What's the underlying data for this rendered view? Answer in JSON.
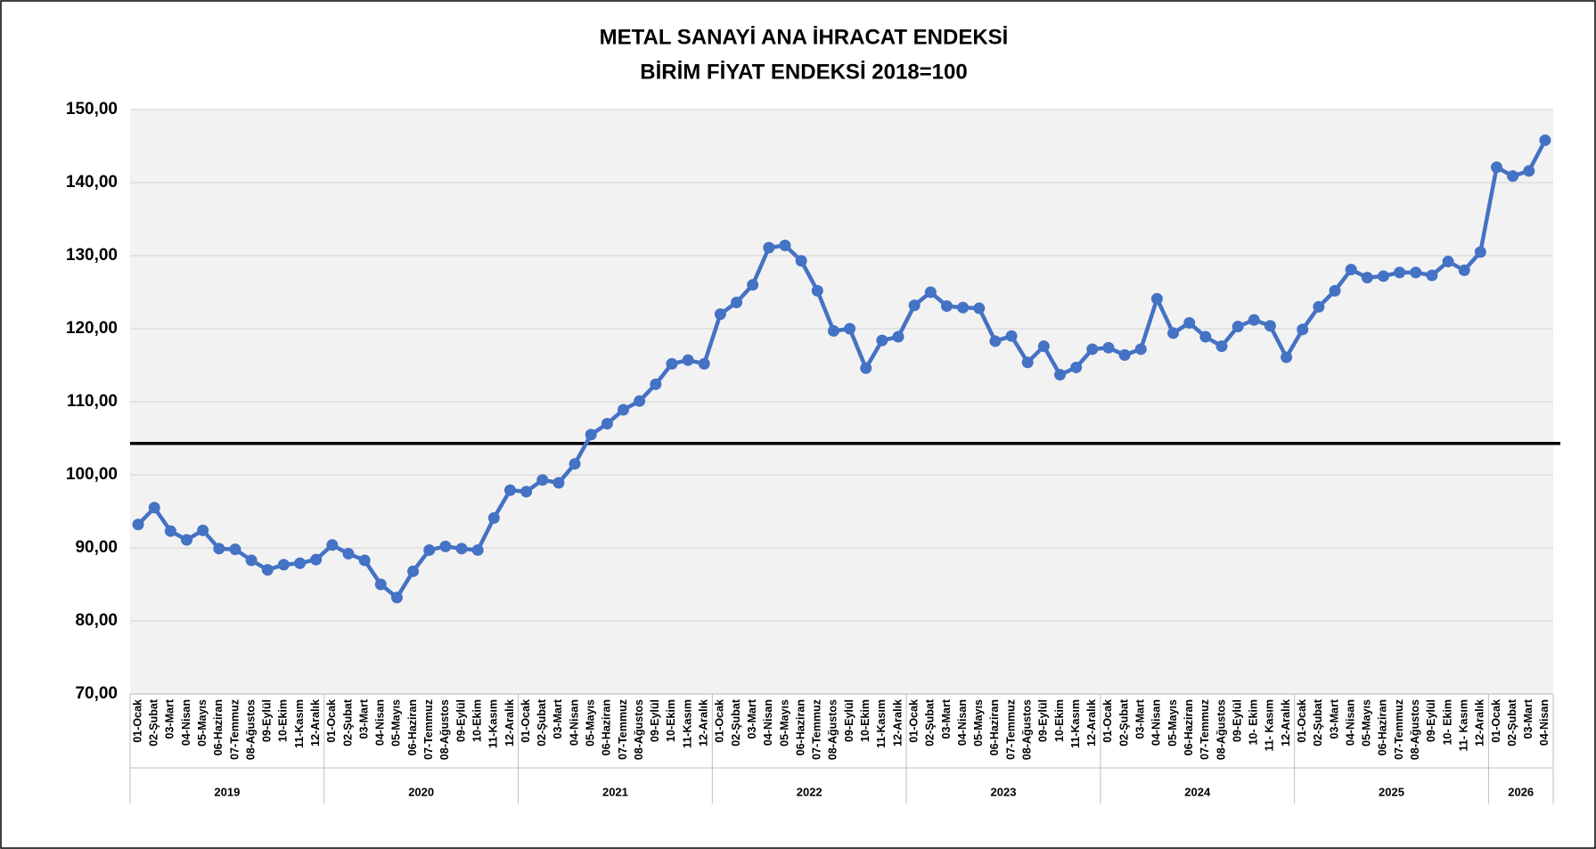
{
  "chart_data": {
    "type": "line",
    "title": "METAL SANAYİ ANA İHRACAT ENDEKSİ",
    "subtitle": "BİRİM FİYAT ENDEKSİ 2018=100",
    "categories": [
      "01-Ocak",
      "02-Şubat",
      "03-Mart",
      "04-Nisan",
      "05-Mayıs",
      "06-Haziran",
      "07-Temmuz",
      "08-Ağustos",
      "09-Eylül",
      "10-Ekim",
      "11-Kasım",
      "12-Aralık",
      "01-Ocak",
      "02-Şubat",
      "03-Mart",
      "04-Nisan",
      "05-Mayıs",
      "06-Haziran",
      "07-Temmuz",
      "08-Ağustos",
      "09-Eylül",
      "10-Ekim",
      "11-Kasım",
      "12-Aralık",
      "01-Ocak",
      "02-Şubat",
      "03-Mart",
      "04-Nisan",
      "05-Mayıs",
      "06-Haziran",
      "07-Temmuz",
      "08-Ağustos",
      "09-Eylül",
      "10-Ekim",
      "11-Kasım",
      "12-Aralık",
      "01-Ocak",
      "02-Şubat",
      "03-Mart",
      "04-Nisan",
      "05-Mayıs",
      "06-Haziran",
      "07-Temmuz",
      "08-Ağustos",
      "09-Eylül",
      "10-Ekim",
      "11-Kasım",
      "12-Aralık",
      "01-Ocak",
      "02-Şubat",
      "03-Mart",
      "04-Nisan",
      "05-Mayıs",
      "06-Haziran",
      "07-Temmuz",
      "08-Ağustos",
      "09-Eylül",
      "10-Ekim",
      "11-Kasım",
      "12-Aralık",
      "01-Ocak",
      "02-Şubat",
      "03-Mart",
      "04-Nisan",
      "05-Mayıs",
      "06-Haziran",
      "07-Temmuz",
      "08-Ağustos",
      "09-Eylül",
      "10- Ekim",
      "11- Kasım",
      "12-Aralık",
      "01-Ocak",
      "02-Şubat",
      "03-Mart",
      "04-Nisan",
      "05-Mayıs",
      "06-Haziran",
      "07-Temmuz",
      "08-Ağustos",
      "09-Eylül",
      "10- Ekim",
      "11- Kasım",
      "12-Aralık",
      "01-Ocak",
      "02-Şubat",
      "03-Mart",
      "04-Nisan"
    ],
    "groups": [
      "2019",
      "2020",
      "2021",
      "2022",
      "2023",
      "2024",
      "2025",
      "2026"
    ],
    "series": [
      {
        "name": "Birim Fiyat Endeksi",
        "color": "#4472c4",
        "values": [
          93.2,
          95.5,
          92.3,
          91.1,
          92.4,
          89.9,
          89.8,
          88.3,
          87.0,
          87.7,
          87.9,
          88.4,
          90.4,
          89.2,
          88.3,
          85.0,
          83.2,
          86.8,
          89.7,
          90.2,
          89.9,
          89.7,
          94.1,
          97.9,
          97.7,
          99.3,
          98.9,
          101.5,
          105.5,
          107.0,
          108.9,
          110.1,
          112.4,
          115.2,
          115.7,
          115.2,
          122.0,
          123.6,
          126.0,
          131.1,
          131.4,
          129.3,
          125.2,
          119.7,
          120.0,
          114.6,
          118.4,
          118.9,
          123.2,
          125.0,
          123.1,
          122.9,
          122.8,
          118.3,
          119.0,
          115.4,
          117.6,
          113.7,
          114.7,
          117.2,
          117.4,
          116.4,
          117.2,
          124.1,
          119.4,
          120.8,
          118.9,
          117.6,
          120.3,
          121.2,
          120.4,
          116.1,
          119.9,
          123.0,
          125.2,
          128.1,
          127.0,
          127.2,
          127.7,
          127.7,
          127.3,
          129.2,
          128.0,
          130.5,
          142.1,
          140.9,
          141.6,
          145.8
        ]
      }
    ],
    "reference_line": 104.3,
    "reference_color": "#000000",
    "ylim": [
      70,
      150
    ],
    "yticks": [
      {
        "value": 70,
        "label": "70,00"
      },
      {
        "value": 80,
        "label": "80,00"
      },
      {
        "value": 90,
        "label": "90,00"
      },
      {
        "value": 100,
        "label": "100,00"
      },
      {
        "value": 110,
        "label": "110,00"
      },
      {
        "value": 120,
        "label": "120,00"
      },
      {
        "value": 130,
        "label": "130,00"
      },
      {
        "value": 140,
        "label": "140,00"
      },
      {
        "value": 150,
        "label": "150,00"
      }
    ],
    "grid": true
  }
}
